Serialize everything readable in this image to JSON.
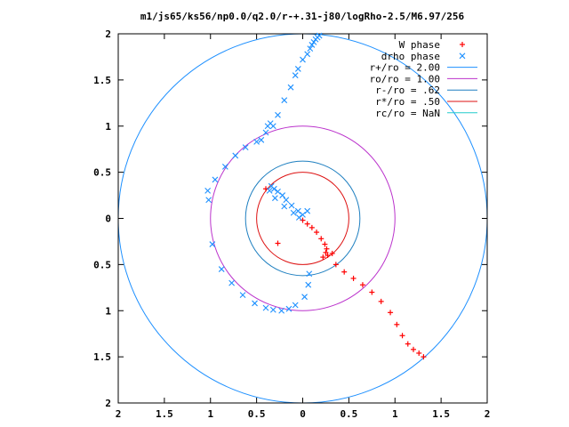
{
  "chart_data": {
    "type": "scatter",
    "title": "m1/js65/ks56/np0.0/q2.0/r-+.31-j80/logRho-2.5/M6.97/256",
    "xlim": [
      -2,
      2
    ],
    "ylim": [
      -2,
      2
    ],
    "x_tick_values": [
      -2,
      -1.5,
      -1,
      -0.5,
      0,
      0.5,
      1,
      1.5,
      2
    ],
    "x_tick_labels": [
      "2",
      "1.5",
      "1",
      "0.5",
      "0",
      "0.5",
      "1",
      "1.5",
      "2"
    ],
    "y_tick_values": [
      2,
      1.5,
      1,
      0.5,
      0,
      -0.5,
      -1,
      -1.5,
      -2
    ],
    "y_tick_labels": [
      "2",
      "1.5",
      "1",
      "0.5",
      "0",
      "0.5",
      "1",
      "1.5",
      "2"
    ],
    "legend_position": "top-right",
    "series": [
      {
        "name": "W phase",
        "marker": "plus",
        "color": "#ff0000",
        "x": [
          -0.4,
          -0.27,
          0.0,
          0.05,
          0.1,
          0.15,
          0.2,
          0.24,
          0.26,
          0.25,
          0.22,
          0.27,
          0.32,
          0.36,
          0.45,
          0.55,
          0.65,
          0.75,
          0.85,
          0.95,
          1.02,
          1.08,
          1.14,
          1.2,
          1.26,
          1.31
        ],
        "y": [
          0.32,
          -0.27,
          -0.02,
          -0.06,
          -0.1,
          -0.15,
          -0.22,
          -0.28,
          -0.33,
          -0.37,
          -0.42,
          -0.4,
          -0.38,
          -0.5,
          -0.58,
          -0.65,
          -0.72,
          -0.8,
          -0.9,
          -1.02,
          -1.15,
          -1.27,
          -1.36,
          -1.42,
          -1.46,
          -1.5
        ]
      },
      {
        "name": "drho phase",
        "marker": "x",
        "color": "#1e90ff",
        "x": [
          -1.02,
          -0.98,
          -0.88,
          -0.77,
          -0.65,
          -0.52,
          -0.4,
          -0.32,
          -0.23,
          -0.15,
          -0.08,
          0.02,
          0.06,
          0.07,
          0.05,
          0.0,
          -0.05,
          -0.12,
          -0.18,
          -0.22,
          -0.27,
          -0.31,
          -0.34,
          -0.36,
          -0.3,
          -0.2,
          -0.1,
          -0.04,
          -0.32,
          -0.27,
          -0.2,
          -0.13,
          -0.08,
          -0.05,
          0.0,
          0.05,
          0.08,
          0.1,
          0.12,
          0.14,
          0.16,
          0.18,
          -0.45,
          -0.4,
          -0.38,
          -0.35,
          -0.5,
          -0.62,
          -0.73,
          -0.84,
          -0.95,
          -1.03
        ],
        "y": [
          0.2,
          -0.28,
          -0.55,
          -0.7,
          -0.83,
          -0.92,
          -0.97,
          -0.99,
          -1.0,
          -0.98,
          -0.94,
          -0.85,
          -0.72,
          -0.6,
          0.08,
          0.04,
          0.08,
          0.14,
          0.2,
          0.25,
          0.29,
          0.32,
          0.35,
          0.3,
          0.22,
          0.13,
          0.06,
          0.01,
          1.0,
          1.12,
          1.28,
          1.42,
          1.55,
          1.62,
          1.72,
          1.78,
          1.84,
          1.88,
          1.91,
          1.94,
          1.96,
          1.98,
          0.85,
          0.93,
          1.0,
          1.03,
          0.83,
          0.77,
          0.68,
          0.56,
          0.42,
          0.3
        ]
      }
    ],
    "circles": [
      {
        "name": "r+/ro = 2.00",
        "radius": 2.0,
        "color": "#1e90ff"
      },
      {
        "name": "ro/ro = 1.00",
        "radius": 1.0,
        "color": "#bb33cc"
      },
      {
        "name": "r-/ro = .62",
        "radius": 0.62,
        "color": "#1e7fc0"
      },
      {
        "name": "r*/ro = .50",
        "radius": 0.5,
        "color": "#dd1111"
      },
      {
        "name": "rc/ro = NaN",
        "radius": null,
        "color": "#22cccc"
      }
    ]
  }
}
